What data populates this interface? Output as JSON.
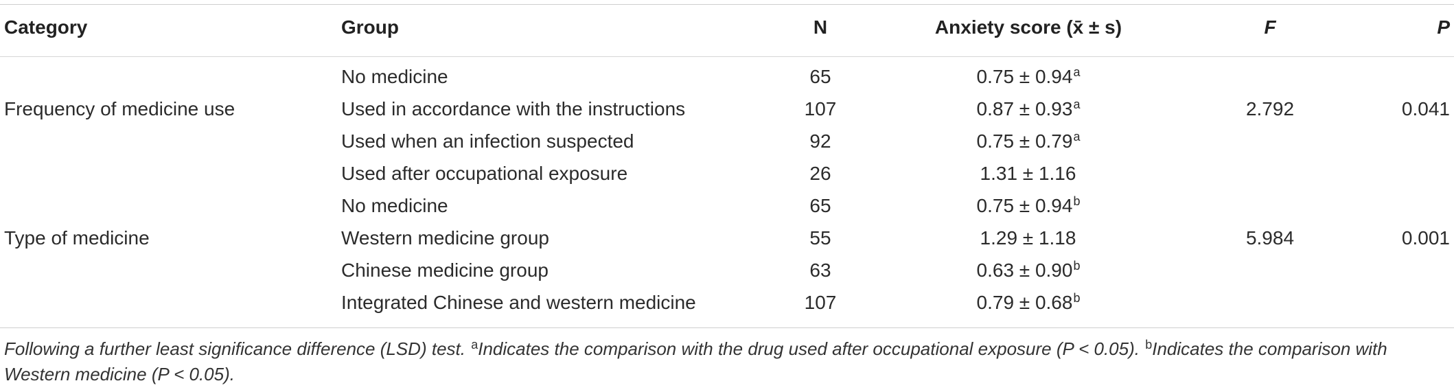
{
  "headers": {
    "category": "Category",
    "group": "Group",
    "n": "N",
    "anxiety": "Anxiety score (x̄ ± s)",
    "f": "F",
    "p": "P"
  },
  "rows": [
    {
      "category": "",
      "group": "No medicine",
      "n": "65",
      "anxiety": "0.75 ± 0.94",
      "sup": "a",
      "f": "",
      "p": ""
    },
    {
      "category": "Frequency of medicine use",
      "group": "Used in accordance with the instructions",
      "n": "107",
      "anxiety": "0.87 ± 0.93",
      "sup": "a",
      "f": "2.792",
      "p": "0.041"
    },
    {
      "category": "",
      "group": "Used when an infection suspected",
      "n": "92",
      "anxiety": "0.75 ± 0.79",
      "sup": "a",
      "f": "",
      "p": ""
    },
    {
      "category": "",
      "group": "Used after occupational exposure",
      "n": "26",
      "anxiety": "1.31 ± 1.16",
      "sup": "",
      "f": "",
      "p": ""
    },
    {
      "category": "",
      "group": "No medicine",
      "n": "65",
      "anxiety": "0.75 ± 0.94",
      "sup": "b",
      "f": "",
      "p": ""
    },
    {
      "category": "Type of medicine",
      "group": "Western medicine group",
      "n": "55",
      "anxiety": "1.29 ± 1.18",
      "sup": "",
      "f": "5.984",
      "p": "0.001"
    },
    {
      "category": "",
      "group": "Chinese medicine group",
      "n": "63",
      "anxiety": "0.63 ± 0.90",
      "sup": "b",
      "f": "",
      "p": ""
    },
    {
      "category": "",
      "group": "Integrated Chinese and western medicine",
      "n": "107",
      "anxiety": "0.79 ± 0.68",
      "sup": "b",
      "f": "",
      "p": ""
    }
  ],
  "footnote": {
    "lead": "Following a further least significance difference (LSD) test. ",
    "mark_a": "a",
    "text_a": "Indicates the comparison with the drug used after occupational exposure (P < 0.05). ",
    "mark_b": "b",
    "text_b": "Indicates the comparison with Western medicine (P < 0.05)."
  }
}
